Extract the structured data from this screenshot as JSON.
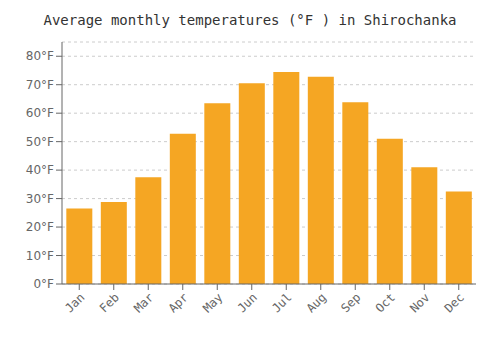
{
  "chart_data": {
    "type": "bar",
    "title": "Average monthly temperatures (°F ) in Shirochanka",
    "categories": [
      "Jan",
      "Feb",
      "Mar",
      "Apr",
      "May",
      "Jun",
      "Jul",
      "Aug",
      "Sep",
      "Oct",
      "Nov",
      "Dec"
    ],
    "values": [
      26.5,
      28.8,
      37.5,
      52.8,
      63.5,
      70.5,
      74.5,
      72.8,
      63.8,
      51.0,
      41.0,
      32.5
    ],
    "color": "#F5A623",
    "ylim": [
      0,
      85
    ],
    "yticks": [
      {
        "value": 0,
        "label": "0°F"
      },
      {
        "value": 10,
        "label": "10°F"
      },
      {
        "value": 20,
        "label": "20°F"
      },
      {
        "value": 30,
        "label": "30°F"
      },
      {
        "value": 40,
        "label": "40°F"
      },
      {
        "value": 50,
        "label": "50°F"
      },
      {
        "value": 60,
        "label": "60°F"
      },
      {
        "value": 70,
        "label": "70°F"
      },
      {
        "value": 80,
        "label": "80°F"
      }
    ],
    "grid": true
  }
}
